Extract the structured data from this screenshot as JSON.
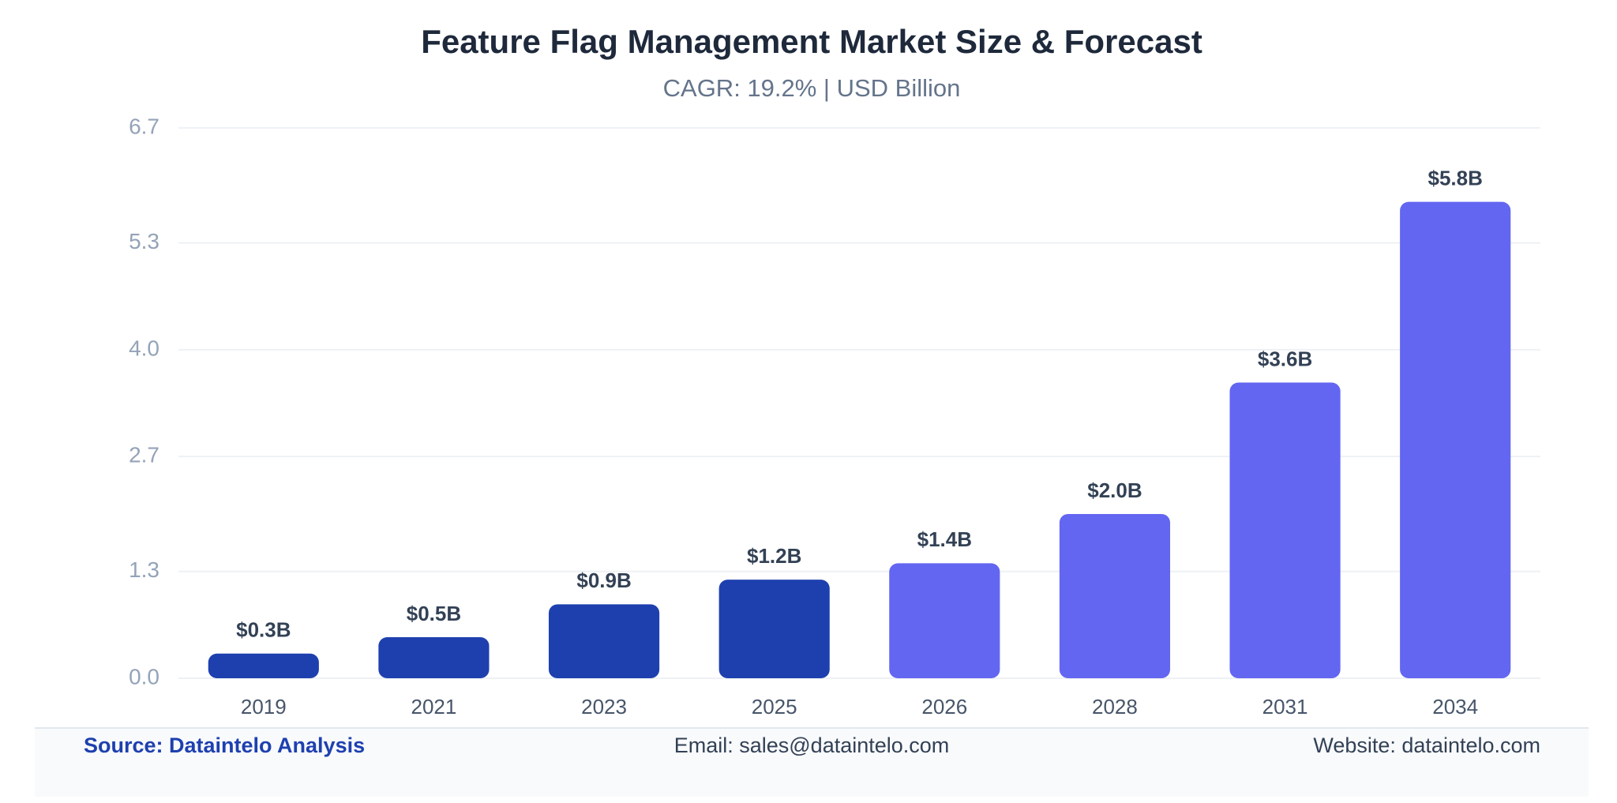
{
  "chart_data": {
    "type": "bar",
    "title": "Feature Flag Management Market Size & Forecast",
    "subtitle": "CAGR: 19.2% | USD Billion",
    "categories": [
      "2019",
      "2021",
      "2023",
      "2025",
      "2026",
      "2028",
      "2031",
      "2034"
    ],
    "values": [
      0.3,
      0.5,
      0.9,
      1.2,
      1.4,
      2.0,
      3.6,
      5.8
    ],
    "value_labels": [
      "$0.3B",
      "$0.5B",
      "$0.9B",
      "$1.2B",
      "$1.4B",
      "$2.0B",
      "$3.6B",
      "$5.8B"
    ],
    "colors": [
      "#1e40af",
      "#1e40af",
      "#1e40af",
      "#1e40af",
      "#6366f1",
      "#6366f1",
      "#6366f1",
      "#6366f1"
    ],
    "ylim": [
      0,
      6.7
    ],
    "yticks": [
      {
        "value": 0,
        "label": "0.0"
      },
      1.3,
      2.7,
      {
        "value": 4,
        "label": "4.0"
      },
      5.3,
      6.7
    ],
    "grid": true
  },
  "footer": {
    "source": "Source: Dataintelo Analysis",
    "email": "Email: sales@dataintelo.com",
    "website": "Website: dataintelo.com"
  }
}
